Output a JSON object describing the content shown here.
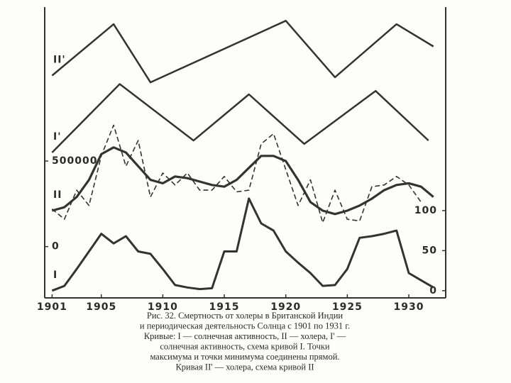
{
  "chart_data": {
    "type": "line",
    "caption": [
      "Рис. 32. Смертность от холеры в Британской Индии",
      "и периодическая деятельность Солнца с 1901 по 1931 г.",
      "Кривые: I — солнечная активность, II — холера, I' —",
      "солнечная активность, схема кривой I. Точки",
      "максимума и точки минимума соединены прямой.",
      "Кривая II' — холера, схема кривой II"
    ],
    "xlim": [
      1900.4,
      1933
    ],
    "xticks": [
      1901,
      1905,
      1910,
      1915,
      1920,
      1925,
      1930
    ],
    "ylim": [
      -300000,
      1400000
    ],
    "yticks": [
      0,
      500000
    ],
    "y2lim": [
      -9,
      354
    ],
    "y2ticks": [
      0,
      50,
      100
    ],
    "series": [
      {
        "name": "II'",
        "color": "#333333",
        "linewidth": 2.5,
        "dashed": false,
        "x": [
          1901,
          1906,
          1909,
          1920,
          1924,
          1929,
          1932
        ],
        "values": [
          1000000,
          1300000,
          960000,
          1320000,
          990000,
          1300000,
          1170000
        ]
      },
      {
        "name": "I'",
        "color": "#333333",
        "linewidth": 2.5,
        "dashed": false,
        "x": [
          1901,
          1906.5,
          1912.5,
          1917,
          1921.5,
          1927.3,
          1931.6
        ],
        "values": [
          550000,
          950000,
          620000,
          890000,
          600000,
          910000,
          620000
        ]
      },
      {
        "color": "#333333",
        "linewidth": 1.6,
        "dashed": true,
        "x": [
          1901,
          1902,
          1903,
          1904,
          1905,
          1906,
          1907,
          1908,
          1909,
          1910,
          1911,
          1912,
          1913,
          1914,
          1915,
          1916,
          1917,
          1918,
          1919,
          1920,
          1921,
          1922,
          1923,
          1924,
          1925,
          1926,
          1927,
          1928,
          1929,
          1930,
          1931
        ],
        "values": [
          220000,
          160000,
          330000,
          240000,
          530000,
          710000,
          470000,
          620000,
          290000,
          430000,
          360000,
          430000,
          330000,
          330000,
          410000,
          320000,
          330000,
          600000,
          660000,
          450000,
          240000,
          390000,
          140000,
          330000,
          160000,
          150000,
          350000,
          360000,
          410000,
          360000,
          260000
        ]
      },
      {
        "name": "II",
        "color": "#333333",
        "linewidth": 3.2,
        "dashed": false,
        "x": [
          1901,
          1902,
          1903,
          1904,
          1905,
          1906,
          1907,
          1908,
          1909,
          1910,
          1911,
          1912,
          1913,
          1914,
          1915,
          1916,
          1917,
          1918,
          1919,
          1920,
          1921,
          1922,
          1923,
          1924,
          1925,
          1926,
          1927,
          1928,
          1929,
          1930,
          1931,
          1932
        ],
        "values": [
          210000,
          230000,
          290000,
          390000,
          540000,
          580000,
          550000,
          470000,
          390000,
          370000,
          410000,
          400000,
          380000,
          360000,
          350000,
          390000,
          460000,
          530000,
          530000,
          500000,
          390000,
          260000,
          210000,
          190000,
          210000,
          240000,
          280000,
          330000,
          360000,
          370000,
          350000,
          290000
        ]
      },
      {
        "name": "I",
        "color": "#333333",
        "linewidth": 3,
        "dashed": false,
        "axis": "y2",
        "x": [
          1901,
          1902,
          1903,
          1904,
          1905,
          1906,
          1907,
          1908,
          1909,
          1910,
          1911,
          1912,
          1913,
          1914,
          1915,
          1916,
          1917,
          1918,
          1919,
          1920,
          1921,
          1922,
          1923,
          1924,
          1925,
          1926,
          1927,
          1928,
          1929,
          1930,
          1931,
          1932
        ],
        "values": [
          0,
          6,
          27,
          49,
          71,
          59,
          68,
          49,
          46,
          27,
          7,
          4,
          2,
          3,
          49,
          49,
          115,
          84,
          75,
          49,
          35,
          22,
          6,
          7,
          27,
          66,
          68,
          71,
          75,
          22,
          13,
          4
        ]
      }
    ]
  }
}
